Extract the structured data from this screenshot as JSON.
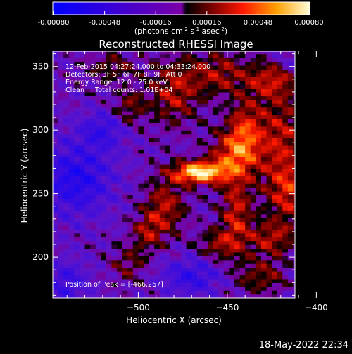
{
  "chart_data": {
    "type": "heatmap",
    "title": "Reconstructed RHESSI Image",
    "xlabel": "Heliocentric X (arcsec)",
    "ylabel": "Heliocentric Y (arcsec)",
    "xlim": [
      -548,
      -412
    ],
    "ylim": [
      168,
      362
    ],
    "xticks": [
      -500,
      -450,
      -400
    ],
    "yticks": [
      200,
      250,
      300,
      350
    ],
    "colorbar": {
      "label_html": "(photons cm<tspan baseline-shift=\"super\" font-size=\"7\">-2</tspan> s<tspan baseline-shift=\"super\" font-size=\"7\">-1</tspan> asec<tspan baseline-shift=\"super\" font-size=\"7\">-2</tspan>)",
      "tick_labels": [
        "-0.00080",
        "-0.00048",
        "-0.00016",
        "0.00016",
        "0.00048",
        "0.00080"
      ],
      "range": [
        -0.0008,
        0.0008
      ]
    },
    "annotations": [
      "12-Feb-2015 04:27:24.000 to 04:33:24.000",
      "Detectors: 3F 5F 6F 7F 8F 9F, Att 0",
      "Energy Range: 12.0 - 25.0 keV",
      "Clean     Total counts: 1.01E+04"
    ],
    "peak_label": "Position of Peak = [-466,267]",
    "peak": {
      "x": -466,
      "y": 267,
      "value": 0.0008
    }
  },
  "footer": {
    "timestamp": "18-May-2022 22:34"
  }
}
